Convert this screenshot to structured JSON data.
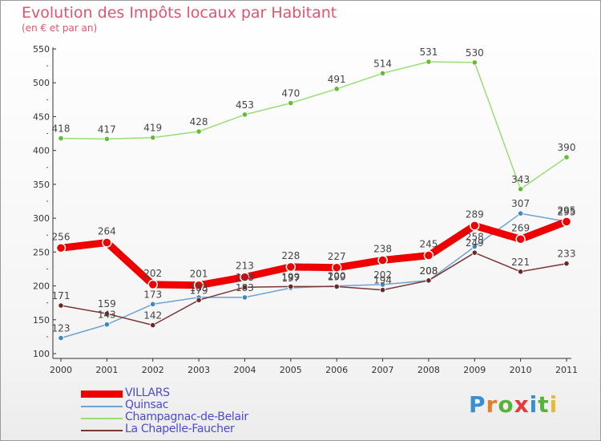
{
  "title": "Evolution des Impôts locaux par Habitant",
  "subtitle": "(en € et par an)",
  "logo": {
    "text": "Proxiti",
    "letter_colors": [
      "#3a8fd0",
      "#e87e2a",
      "#57b33a",
      "#e83a3a",
      "#3a8fd0",
      "#57b33a",
      "#e8b83a"
    ]
  },
  "chart_data": {
    "type": "line",
    "x": [
      "2000",
      "2001",
      "2002",
      "2003",
      "2004",
      "2005",
      "2006",
      "2007",
      "2008",
      "2009",
      "2010",
      "2011"
    ],
    "ylim": [
      100,
      550
    ],
    "yticks": [
      100,
      150,
      200,
      250,
      300,
      350,
      400,
      450,
      500,
      550
    ],
    "grid": false,
    "legend_position": "bottom-left",
    "series": [
      {
        "name": "Champagnac-de-Belair",
        "color": "#99dd77",
        "marker": "#66bb33",
        "values": [
          418,
          417,
          419,
          428,
          453,
          470,
          491,
          514,
          531,
          530,
          343,
          390
        ],
        "labels": [
          "418",
          "417",
          "419",
          "428",
          "453",
          "470",
          "491",
          "514",
          "531",
          "530",
          "343",
          "390"
        ]
      },
      {
        "name": "Quinsac",
        "color": "#6ea3d2",
        "marker": "#3d86c8",
        "values": [
          123,
          143,
          173,
          183,
          183,
          197,
          200,
          202,
          208,
          258,
          307,
          295
        ],
        "labels": [
          "123",
          "143",
          "173",
          "183",
          "183",
          "197",
          "200",
          "202",
          "208",
          "258",
          "307",
          "295"
        ]
      },
      {
        "name": "La Chapelle-Faucher",
        "color": "#7a3535",
        "marker": "#6a2828",
        "values": [
          171,
          159,
          142,
          179,
          198,
          199,
          199,
          194,
          208,
          249,
          221,
          233
        ],
        "labels": [
          "171",
          "159",
          "142",
          "179",
          "198",
          "199",
          "199",
          "194",
          "208",
          "249",
          "221",
          "233"
        ]
      },
      {
        "name": "VILLARS",
        "color": "#ee0000",
        "marker": "#ee0000",
        "values": [
          256,
          264,
          202,
          201,
          213,
          228,
          227,
          238,
          245,
          289,
          269,
          295
        ],
        "labels": [
          "256",
          "264",
          "202",
          "201",
          "213",
          "228",
          "227",
          "238",
          "245",
          "289",
          "269",
          "295"
        ]
      }
    ],
    "legend": [
      "VILLARS",
      "Quinsac",
      "Champagnac-de-Belair",
      "La Chapelle-Faucher"
    ]
  }
}
